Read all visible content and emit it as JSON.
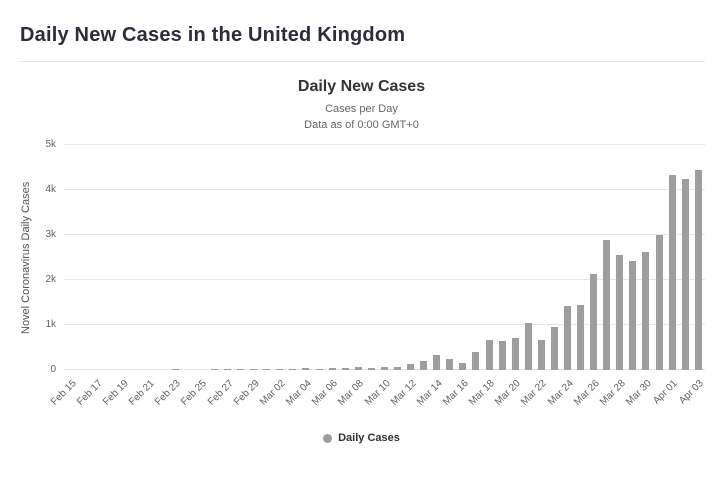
{
  "page": {
    "title": "Daily New Cases in the United Kingdom"
  },
  "chart": {
    "title": "Daily New Cases",
    "subtitle1": "Cases per Day",
    "subtitle2": "Data as of 0:00 GMT+0",
    "y_axis_title": "Novel Coronavirus Daily Cases",
    "legend_label": "Daily Cases",
    "bar_color": "#9e9e9e",
    "gridline_color": "#e6e6e6"
  },
  "chart_data": {
    "type": "bar",
    "title": "Daily New Cases",
    "subtitle": "Cases per Day — Data as of 0:00 GMT+0",
    "xlabel": "",
    "ylabel": "Novel Coronavirus Daily Cases",
    "ylim": [
      0,
      5000
    ],
    "yticks": [
      "0",
      "1k",
      "2k",
      "3k",
      "4k",
      "5k"
    ],
    "x_tick_step": 2,
    "legend": [
      "Daily Cases"
    ],
    "legend_position": "bottom",
    "grid": true,
    "categories": [
      "Feb 15",
      "Feb 16",
      "Feb 17",
      "Feb 18",
      "Feb 19",
      "Feb 20",
      "Feb 21",
      "Feb 22",
      "Feb 23",
      "Feb 24",
      "Feb 25",
      "Feb 26",
      "Feb 27",
      "Feb 28",
      "Feb 29",
      "Mar 01",
      "Mar 02",
      "Mar 03",
      "Mar 04",
      "Mar 05",
      "Mar 06",
      "Mar 07",
      "Mar 08",
      "Mar 09",
      "Mar 10",
      "Mar 11",
      "Mar 12",
      "Mar 13",
      "Mar 14",
      "Mar 15",
      "Mar 16",
      "Mar 17",
      "Mar 18",
      "Mar 19",
      "Mar 20",
      "Mar 21",
      "Mar 22",
      "Mar 23",
      "Mar 24",
      "Mar 25",
      "Mar 26",
      "Mar 27",
      "Mar 28",
      "Mar 29",
      "Mar 30",
      "Mar 31",
      "Apr 01",
      "Apr 02",
      "Apr 03"
    ],
    "values": [
      0,
      0,
      0,
      0,
      0,
      0,
      0,
      0,
      4,
      0,
      0,
      2,
      1,
      4,
      3,
      13,
      4,
      12,
      34,
      30,
      47,
      43,
      67,
      46,
      61,
      77,
      134,
      208,
      342,
      251,
      152,
      407,
      676,
      643,
      714,
      1035,
      665,
      967,
      1427,
      1452,
      2129,
      2885,
      2546,
      2433,
      2619,
      3009,
      4324,
      4244,
      4450
    ]
  }
}
